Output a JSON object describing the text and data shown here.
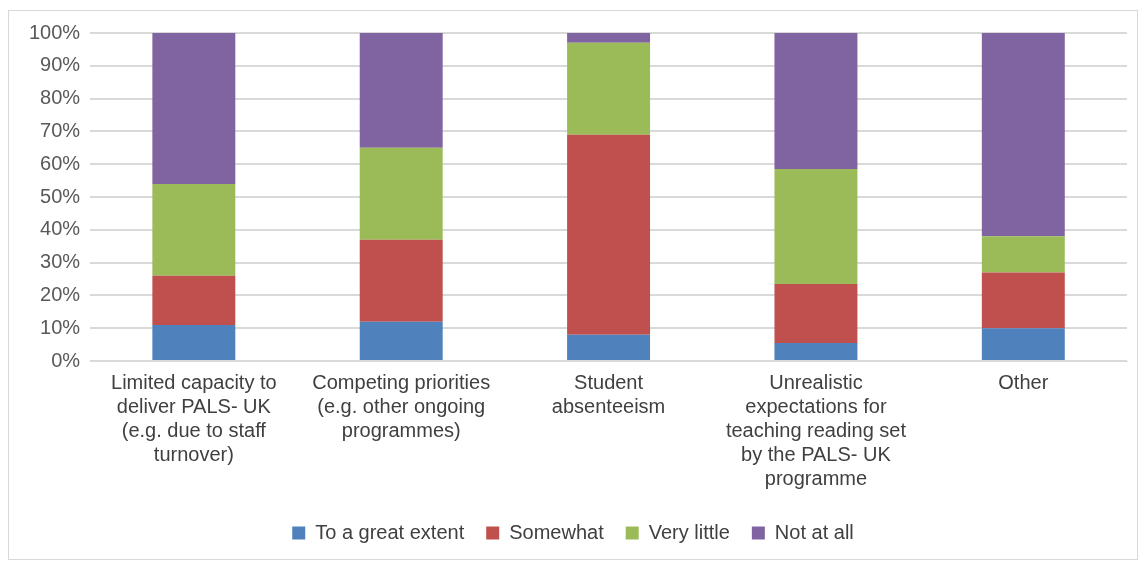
{
  "chart_data": {
    "type": "bar",
    "stacked": true,
    "categories": [
      "Limited capacity to deliver PALS- UK (e.g. due to staff turnover)",
      "Competing priorities (e.g. other ongoing programmes)",
      "Student absenteeism",
      "Unrealistic expectations for teaching reading set by the PALS- UK programme",
      "Other"
    ],
    "series": [
      {
        "name": "To a great extent",
        "color": "#4f81bd",
        "values": [
          11,
          12,
          8,
          5.5,
          10
        ]
      },
      {
        "name": "Somewhat",
        "color": "#c0504d",
        "values": [
          15,
          25,
          61,
          18,
          17
        ]
      },
      {
        "name": "Very little",
        "color": "#9bbb59",
        "values": [
          28,
          28,
          28,
          35,
          11
        ]
      },
      {
        "name": "Not at all",
        "color": "#8064a2",
        "values": [
          46,
          35,
          3,
          41.5,
          62
        ]
      }
    ],
    "ylim": [
      0,
      100
    ],
    "yticks": [
      {
        "value": 0,
        "label": "0%"
      },
      {
        "value": 10,
        "label": "10%"
      },
      {
        "value": 20,
        "label": "20%"
      },
      {
        "value": 30,
        "label": "30%"
      },
      {
        "value": 40,
        "label": "40%"
      },
      {
        "value": 50,
        "label": "50%"
      },
      {
        "value": 60,
        "label": "60%"
      },
      {
        "value": 70,
        "label": "70%"
      },
      {
        "value": 80,
        "label": "80%"
      },
      {
        "value": 90,
        "label": "90%"
      },
      {
        "value": 100,
        "label": "100%"
      }
    ],
    "grid": "y",
    "legend": "bottom"
  }
}
